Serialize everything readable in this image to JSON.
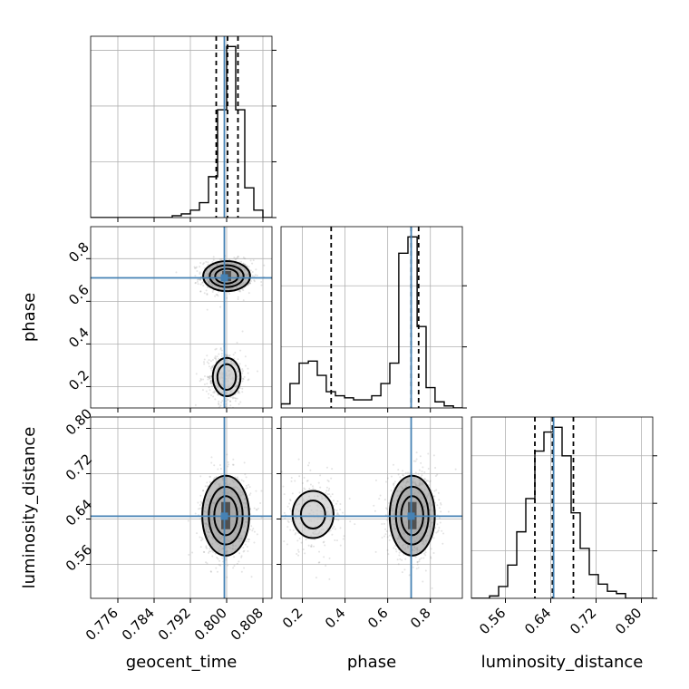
{
  "chart_data": {
    "type": "corner",
    "grid": true,
    "parameters": [
      "geocent_time",
      "phase",
      "luminosity_distance"
    ],
    "truths": {
      "geocent_time": 0.7995,
      "phase": 0.71,
      "luminosity_distance": 0.645
    },
    "quantiles": {
      "geocent_time": [
        0.7977,
        0.8002,
        0.8025
      ],
      "phase": [
        0.335,
        0.71,
        0.745
      ],
      "luminosity_distance": [
        0.612,
        0.643,
        0.68
      ]
    },
    "axes": {
      "geocent_time": {
        "range": [
          0.77,
          0.81
        ],
        "ticks": [
          0.776,
          0.784,
          0.792,
          0.8,
          0.808
        ],
        "tick_labels": [
          "0.776",
          "0.784",
          "0.792",
          "0.800",
          "0.808"
        ]
      },
      "phase": {
        "range": [
          0.1,
          0.95
        ],
        "ticks": [
          0.2,
          0.4,
          0.6,
          0.8
        ],
        "tick_labels": [
          "0.2",
          "0.4",
          "0.6",
          "0.8"
        ]
      },
      "luminosity_distance": {
        "range": [
          0.5,
          0.82
        ],
        "ticks": [
          0.56,
          0.64,
          0.72,
          0.8
        ],
        "tick_labels": [
          "0.56",
          "0.64",
          "0.72",
          "0.80"
        ]
      }
    },
    "histograms": {
      "geocent_time": {
        "edges": [
          0.77,
          0.772,
          0.774,
          0.776,
          0.778,
          0.78,
          0.782,
          0.784,
          0.786,
          0.788,
          0.79,
          0.792,
          0.794,
          0.796,
          0.798,
          0.8,
          0.802,
          0.804,
          0.806,
          0.808,
          0.81
        ],
        "counts": [
          0,
          0,
          0,
          0,
          0,
          0,
          0,
          0,
          0,
          1,
          2,
          4,
          8,
          22,
          58,
          92,
          58,
          16,
          4,
          0
        ]
      },
      "phase": {
        "edges": [
          0.1,
          0.142,
          0.185,
          0.228,
          0.27,
          0.312,
          0.355,
          0.398,
          0.44,
          0.482,
          0.525,
          0.568,
          0.61,
          0.652,
          0.695,
          0.738,
          0.78,
          0.822,
          0.865,
          0.908,
          0.95
        ],
        "counts": [
          2,
          12,
          22,
          23,
          16,
          8,
          6,
          5,
          4,
          4,
          6,
          12,
          22,
          76,
          84,
          40,
          10,
          3,
          1,
          0
        ]
      },
      "luminosity_distance": {
        "edges": [
          0.5,
          0.516,
          0.532,
          0.548,
          0.564,
          0.58,
          0.596,
          0.612,
          0.628,
          0.644,
          0.66,
          0.676,
          0.692,
          0.708,
          0.724,
          0.74,
          0.756,
          0.772,
          0.788,
          0.804,
          0.82
        ],
        "counts": [
          0,
          0,
          1,
          5,
          14,
          28,
          42,
          62,
          70,
          72,
          60,
          36,
          21,
          10,
          6,
          3,
          2,
          0,
          0,
          0
        ]
      }
    },
    "contours_2d": [
      {
        "x": "geocent_time",
        "y": "phase",
        "modes": [
          {
            "center": [
              0.8,
              0.718
            ],
            "sigma": [
              0.0022,
              0.03
            ],
            "weight": 1.0,
            "levels": [
              1.15,
              1.7,
              2.35
            ]
          },
          {
            "center": [
              0.8,
              0.245
            ],
            "sigma": [
              0.0017,
              0.05
            ],
            "weight": 0.55,
            "levels": [
              1.2,
              1.8
            ]
          }
        ]
      },
      {
        "x": "geocent_time",
        "y": "luminosity_distance",
        "modes": [
          {
            "center": [
              0.7998,
              0.646
            ],
            "sigma": [
              0.0022,
              0.03
            ],
            "weight": 1.0,
            "levels": [
              1.15,
              1.7,
              2.35
            ]
          }
        ]
      },
      {
        "x": "phase",
        "y": "luminosity_distance",
        "modes": [
          {
            "center": [
              0.715,
              0.646
            ],
            "sigma": [
              0.045,
              0.03
            ],
            "weight": 1.0,
            "levels": [
              1.15,
              1.7,
              2.35
            ]
          },
          {
            "center": [
              0.25,
              0.648
            ],
            "sigma": [
              0.06,
              0.026
            ],
            "weight": 0.35,
            "levels": [
              0.95,
              1.6
            ]
          }
        ]
      }
    ],
    "colors": {
      "truth": "#4682b4",
      "line": "#000000",
      "grid": "#b0b0b0",
      "scatter": "#808080"
    }
  }
}
